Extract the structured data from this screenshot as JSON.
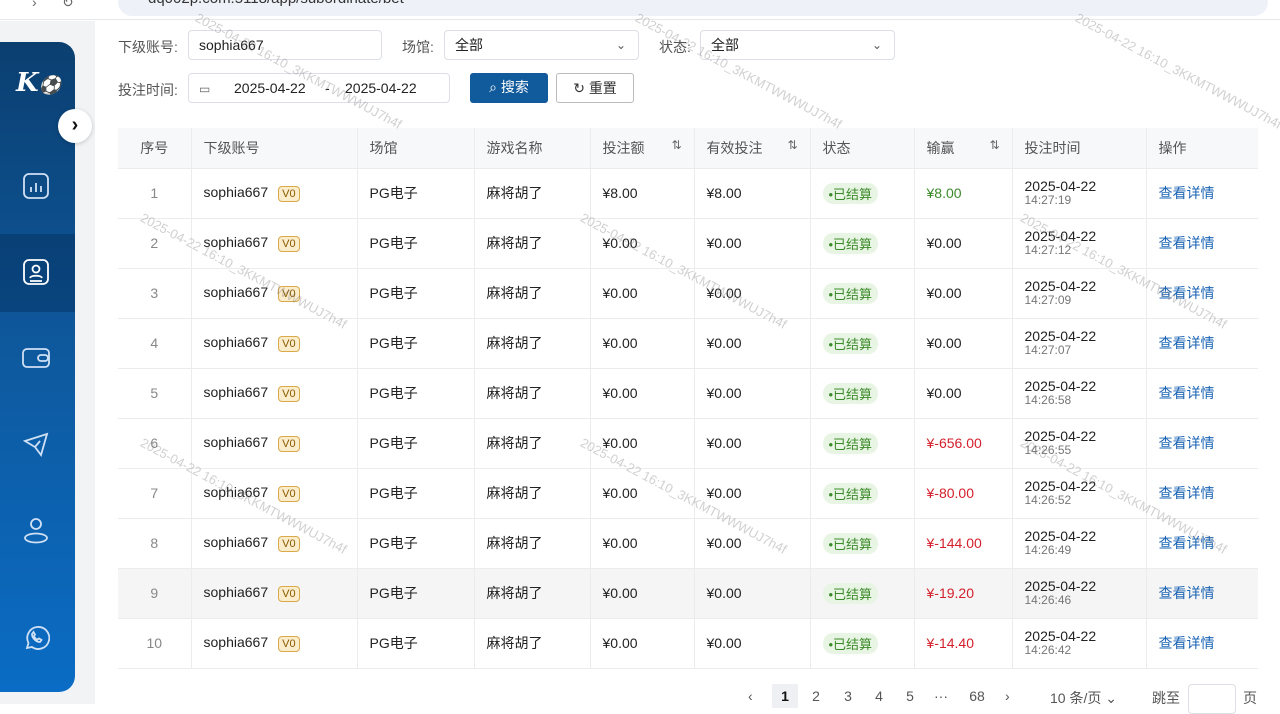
{
  "browser": {
    "url": "dq002p.com:5118/app/subordinate/bet"
  },
  "sidebar": {
    "logo": "K⚽",
    "items": [
      "chart-icon",
      "user-card-icon",
      "wallet-icon",
      "telegram-icon",
      "user-icon",
      "whatsapp-icon"
    ],
    "active": 1
  },
  "filters": {
    "account_label": "下级账号:",
    "account_value": "sophia667",
    "venue_label": "场馆:",
    "venue_value": "全部",
    "status_label": "状态:",
    "status_value": "全部",
    "time_label": "投注时间:",
    "date_start": "2025-04-22",
    "date_sep": "-",
    "date_end": "2025-04-22",
    "search": "搜索",
    "reset": "重置"
  },
  "table": {
    "headers": [
      "序号",
      "下级账号",
      "场馆",
      "游戏名称",
      "投注额",
      "有效投注",
      "状态",
      "输赢",
      "投注时间",
      "操作"
    ],
    "rows": [
      {
        "i": "1",
        "acc": "sophia667",
        "lvl": "V0",
        "venue": "PG电子",
        "game": "麻将胡了",
        "bet": "¥8.00",
        "valid": "¥8.00",
        "status": "•已结算",
        "win": "¥8.00",
        "wt": "pos",
        "date": "2025-04-22",
        "time": "14:27:19",
        "op": "查看详情"
      },
      {
        "i": "2",
        "acc": "sophia667",
        "lvl": "V0",
        "venue": "PG电子",
        "game": "麻将胡了",
        "bet": "¥0.00",
        "valid": "¥0.00",
        "status": "•已结算",
        "win": "¥0.00",
        "wt": "",
        "date": "2025-04-22",
        "time": "14:27:12",
        "op": "查看详情"
      },
      {
        "i": "3",
        "acc": "sophia667",
        "lvl": "V0",
        "venue": "PG电子",
        "game": "麻将胡了",
        "bet": "¥0.00",
        "valid": "¥0.00",
        "status": "•已结算",
        "win": "¥0.00",
        "wt": "",
        "date": "2025-04-22",
        "time": "14:27:09",
        "op": "查看详情"
      },
      {
        "i": "4",
        "acc": "sophia667",
        "lvl": "V0",
        "venue": "PG电子",
        "game": "麻将胡了",
        "bet": "¥0.00",
        "valid": "¥0.00",
        "status": "•已结算",
        "win": "¥0.00",
        "wt": "",
        "date": "2025-04-22",
        "time": "14:27:07",
        "op": "查看详情"
      },
      {
        "i": "5",
        "acc": "sophia667",
        "lvl": "V0",
        "venue": "PG电子",
        "game": "麻将胡了",
        "bet": "¥0.00",
        "valid": "¥0.00",
        "status": "•已结算",
        "win": "¥0.00",
        "wt": "",
        "date": "2025-04-22",
        "time": "14:26:58",
        "op": "查看详情"
      },
      {
        "i": "6",
        "acc": "sophia667",
        "lvl": "V0",
        "venue": "PG电子",
        "game": "麻将胡了",
        "bet": "¥0.00",
        "valid": "¥0.00",
        "status": "•已结算",
        "win": "¥-656.00",
        "wt": "neg",
        "date": "2025-04-22",
        "time": "14:26:55",
        "op": "查看详情"
      },
      {
        "i": "7",
        "acc": "sophia667",
        "lvl": "V0",
        "venue": "PG电子",
        "game": "麻将胡了",
        "bet": "¥0.00",
        "valid": "¥0.00",
        "status": "•已结算",
        "win": "¥-80.00",
        "wt": "neg",
        "date": "2025-04-22",
        "time": "14:26:52",
        "op": "查看详情"
      },
      {
        "i": "8",
        "acc": "sophia667",
        "lvl": "V0",
        "venue": "PG电子",
        "game": "麻将胡了",
        "bet": "¥0.00",
        "valid": "¥0.00",
        "status": "•已结算",
        "win": "¥-144.00",
        "wt": "neg",
        "date": "2025-04-22",
        "time": "14:26:49",
        "op": "查看详情"
      },
      {
        "i": "9",
        "acc": "sophia667",
        "lvl": "V0",
        "venue": "PG电子",
        "game": "麻将胡了",
        "bet": "¥0.00",
        "valid": "¥0.00",
        "status": "•已结算",
        "win": "¥-19.20",
        "wt": "neg",
        "date": "2025-04-22",
        "time": "14:26:46",
        "op": "查看详情"
      },
      {
        "i": "10",
        "acc": "sophia667",
        "lvl": "V0",
        "venue": "PG电子",
        "game": "麻将胡了",
        "bet": "¥0.00",
        "valid": "¥0.00",
        "status": "•已结算",
        "win": "¥-14.40",
        "wt": "neg",
        "date": "2025-04-22",
        "time": "14:26:42",
        "op": "查看详情"
      }
    ]
  },
  "pagination": {
    "prev": "‹",
    "pages": [
      "1",
      "2",
      "3",
      "4",
      "5",
      "···",
      "68"
    ],
    "current": "1",
    "next": "›",
    "page_size": "10 条/页",
    "jump_label": "跳至",
    "jump_value": "",
    "page_unit": "页"
  },
  "watermark": "2025-04-22 16:10_3KKMTWWWUJ7h4f",
  "colors": {
    "primary": "#0e5aa0",
    "positive": "#3b8a2a",
    "negative": "#d4202c",
    "link": "#1b64b4"
  }
}
